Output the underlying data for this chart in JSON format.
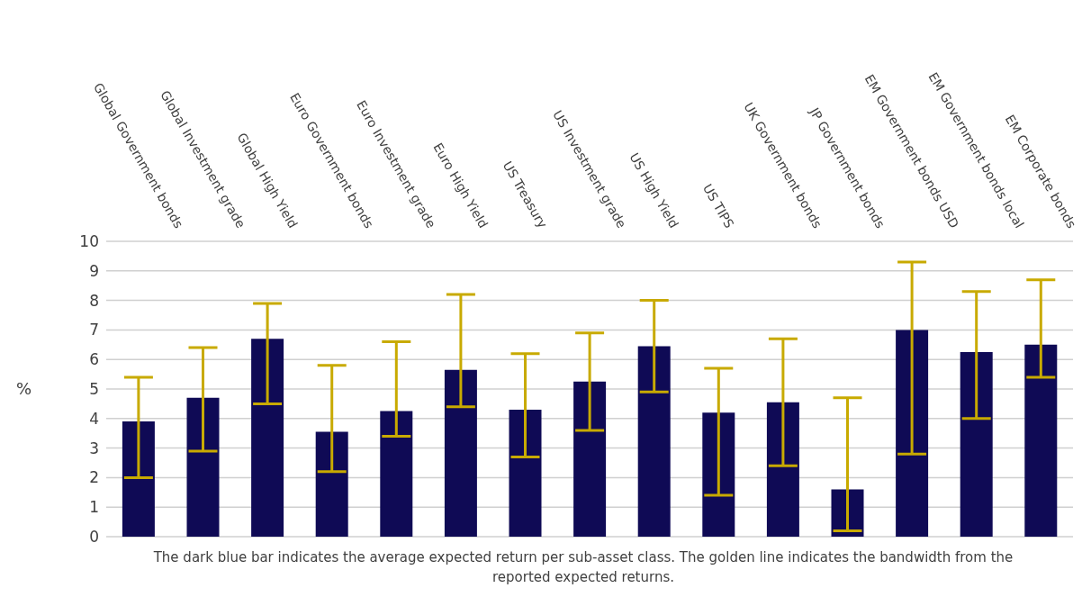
{
  "chart_data": {
    "type": "bar",
    "categories": [
      "Global Government bonds",
      "Global Investment grade",
      "Global High Yield",
      "Euro Government bonds",
      "Euro Investment grade",
      "Euro High Yield",
      "US Treasury",
      "US Investment grade",
      "US High Yield",
      "US TIPS",
      "UK Government bonds",
      "JP Government bonds",
      "EM Government bonds USD",
      "EM Government bonds local",
      "EM Corporate bonds"
    ],
    "series": [
      {
        "color": "#0f0a55",
        "values": [
          3.9,
          4.7,
          6.7,
          3.55,
          4.25,
          5.65,
          4.3,
          5.25,
          6.45,
          4.2,
          4.55,
          1.6,
          7.0,
          6.25,
          6.5
        ],
        "errors": [
          [
            2.0,
            5.4
          ],
          [
            2.9,
            6.4
          ],
          [
            4.5,
            7.9
          ],
          [
            2.2,
            5.8
          ],
          [
            3.4,
            6.6
          ],
          [
            4.4,
            8.2
          ],
          [
            2.7,
            6.2
          ],
          [
            3.6,
            6.9
          ],
          [
            4.9,
            8.0
          ],
          [
            1.4,
            5.7
          ],
          [
            2.4,
            6.7
          ],
          [
            0.2,
            4.7
          ],
          [
            2.8,
            9.3
          ],
          [
            4.0,
            8.3
          ],
          [
            5.4,
            8.7
          ]
        ]
      }
    ],
    "ylabel": "%",
    "ylim": [
      0,
      10
    ],
    "yticks": [
      0,
      1,
      2,
      3,
      4,
      5,
      6,
      7,
      8,
      9,
      10
    ],
    "grid": "y",
    "annotations": [
      "The dark blue bar indicates the average expected return per sub-asset class. The golden line indicates the bandwidth from the reported expected returns."
    ]
  }
}
